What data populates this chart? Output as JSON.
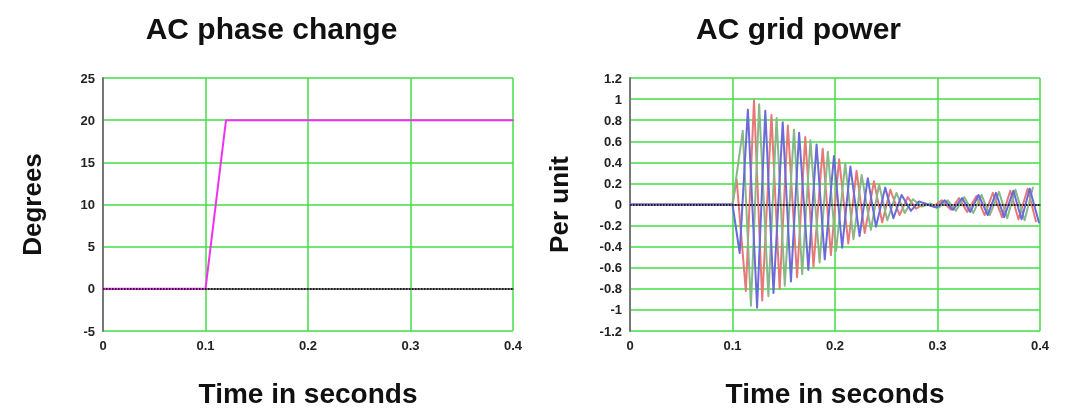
{
  "chart_data": [
    {
      "type": "line",
      "title": "AC phase change",
      "xlabel": "Time in seconds",
      "ylabel": "Degrees",
      "xlim": [
        0,
        0.4
      ],
      "ylim": [
        -5,
        25
      ],
      "xticks": [
        0,
        0.1,
        0.2,
        0.3,
        0.4
      ],
      "yticks": [
        -5,
        0,
        5,
        10,
        15,
        20,
        25
      ],
      "grid": true,
      "marker": "none",
      "line_style": "solid",
      "series": [
        {
          "color": "#ee33ee",
          "x": [
            0,
            0.1,
            0.12,
            0.4
          ],
          "values": [
            0,
            0,
            20,
            20
          ]
        }
      ],
      "ref_lines": [
        {
          "axis": "y",
          "value": 0,
          "color": "#000000",
          "line_style": "dotted"
        }
      ]
    },
    {
      "type": "line",
      "title": "AC grid power",
      "xlabel": "Time in seconds",
      "ylabel": "Per unit",
      "xlim": [
        0,
        0.4
      ],
      "ylim": [
        -1.2,
        1.2
      ],
      "xticks": [
        0,
        0.1,
        0.2,
        0.3,
        0.4
      ],
      "yticks": [
        -1.2,
        -1,
        -0.8,
        -0.6,
        -0.4,
        -0.2,
        0,
        0.2,
        0.4,
        0.6,
        0.8,
        1,
        1.2
      ],
      "grid": true,
      "marker": "none",
      "line_style": "solid",
      "series": [
        {
          "color": "#e87878",
          "x": [
            0,
            0.1,
            0.104,
            0.113,
            0.121,
            0.129,
            0.138,
            0.146,
            0.154,
            0.163,
            0.171,
            0.179,
            0.188,
            0.196,
            0.204,
            0.213,
            0.221,
            0.229,
            0.238,
            0.246,
            0.254,
            0.263,
            0.271,
            0.279,
            0.288,
            0.296,
            0.304,
            0.313,
            0.321,
            0.329,
            0.338,
            0.346,
            0.354,
            0.363,
            0.371,
            0.379,
            0.388,
            0.396
          ],
          "values": [
            0,
            0,
            0.24,
            -0.82,
            0.99,
            -0.91,
            0.85,
            -0.8,
            0.75,
            -0.69,
            0.64,
            -0.59,
            0.53,
            -0.48,
            0.43,
            -0.37,
            0.32,
            -0.27,
            0.22,
            -0.17,
            0.14,
            -0.1,
            0.07,
            -0.04,
            0.01,
            -0.02,
            0.04,
            -0.05,
            0.06,
            -0.07,
            0.08,
            -0.1,
            0.11,
            -0.12,
            0.13,
            -0.14,
            0.15,
            -0.16
          ]
        },
        {
          "color": "#88b888",
          "x": [
            0,
            0.1,
            0.11,
            0.118,
            0.126,
            0.135,
            0.143,
            0.151,
            0.16,
            0.168,
            0.176,
            0.185,
            0.193,
            0.201,
            0.21,
            0.218,
            0.226,
            0.235,
            0.243,
            0.251,
            0.26,
            0.268,
            0.276,
            0.285,
            0.293,
            0.301,
            0.31,
            0.318,
            0.326,
            0.335,
            0.343,
            0.351,
            0.36,
            0.368,
            0.376,
            0.385,
            0.393
          ],
          "values": [
            0,
            0,
            0.7,
            -0.96,
            0.95,
            -0.87,
            0.82,
            -0.77,
            0.71,
            -0.66,
            0.61,
            -0.55,
            0.5,
            -0.44,
            0.39,
            -0.33,
            0.28,
            -0.24,
            0.19,
            -0.15,
            0.11,
            -0.08,
            0.05,
            -0.02,
            0.01,
            -0.03,
            0.04,
            -0.06,
            0.07,
            -0.08,
            0.09,
            -0.1,
            0.12,
            -0.13,
            0.14,
            -0.15,
            0.16
          ]
        },
        {
          "color": "#6a6ad8",
          "x": [
            0,
            0.1,
            0.107,
            0.115,
            0.124,
            0.132,
            0.14,
            0.149,
            0.157,
            0.165,
            0.174,
            0.182,
            0.19,
            0.199,
            0.207,
            0.215,
            0.224,
            0.232,
            0.24,
            0.249,
            0.257,
            0.265,
            0.274,
            0.282,
            0.29,
            0.299,
            0.307,
            0.315,
            0.324,
            0.332,
            0.34,
            0.349,
            0.357,
            0.365,
            0.374,
            0.382,
            0.39,
            0.399
          ],
          "values": [
            0,
            0,
            -0.46,
            0.9,
            -0.98,
            0.89,
            -0.84,
            0.78,
            -0.73,
            0.68,
            -0.62,
            0.57,
            -0.52,
            0.46,
            -0.41,
            0.36,
            -0.3,
            0.25,
            -0.21,
            0.16,
            -0.13,
            0.09,
            -0.06,
            0.03,
            0,
            -0.03,
            0.04,
            -0.05,
            0.06,
            -0.07,
            0.09,
            -0.1,
            0.11,
            -0.12,
            0.13,
            -0.14,
            0.15,
            -0.17
          ]
        }
      ],
      "ref_lines": [
        {
          "axis": "y",
          "value": 0,
          "color": "#000000",
          "line_style": "dotted"
        }
      ]
    }
  ]
}
